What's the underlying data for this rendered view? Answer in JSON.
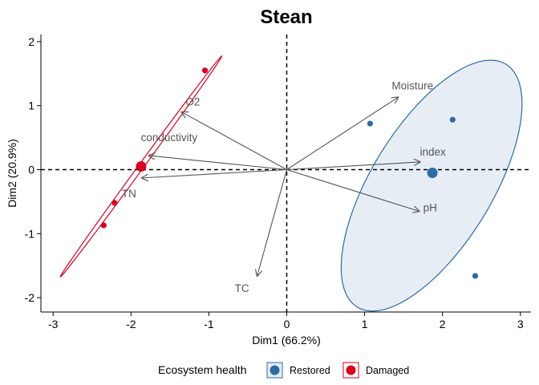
{
  "chart_data": {
    "type": "scatter",
    "title": "Stean",
    "xlabel": "Dim1 (66.2%)",
    "ylabel": "Dim2 (20.9%)",
    "xlim": [
      -3.2,
      3.2
    ],
    "ylim": [
      -2.2,
      2.1
    ],
    "xticks": [
      -3,
      -2,
      -1,
      0,
      1,
      2,
      3
    ],
    "yticks": [
      -2,
      -1,
      0,
      1,
      2
    ],
    "grid": false,
    "reference_lines": {
      "x": 0,
      "y": 0,
      "style": "dashed"
    },
    "legend": {
      "title": "Ecosystem health",
      "position": "bottom",
      "entries": [
        {
          "name": "Restored",
          "color": "#2c6aa8"
        },
        {
          "name": "Damaged",
          "color": "#d7001f"
        }
      ]
    },
    "series": [
      {
        "name": "Restored",
        "color": "#2c6aa8",
        "fill": "#e7edf4",
        "points": [
          {
            "x": 1.07,
            "y": 0.72
          },
          {
            "x": 2.13,
            "y": 0.78
          },
          {
            "x": 2.42,
            "y": -1.66
          }
        ],
        "centroid": {
          "x": 1.87,
          "y": -0.05
        },
        "ellipse": {
          "cx": 1.86,
          "cy": -0.25,
          "rx": 0.81,
          "ry": 2.13,
          "angle_deg": -25
        }
      },
      {
        "name": "Damaged",
        "color": "#d7001f",
        "fill": "none",
        "points": [
          {
            "x": -1.05,
            "y": 1.55
          },
          {
            "x": -2.21,
            "y": -0.52
          },
          {
            "x": -2.35,
            "y": -0.87
          }
        ],
        "centroid": {
          "x": -1.87,
          "y": 0.05
        },
        "ellipse": {
          "cx": -1.87,
          "cy": 0.05,
          "rx": 2.01,
          "ry": 0.035,
          "angle_deg": 59
        }
      }
    ],
    "variables": [
      {
        "name": "Moisture",
        "x": 1.43,
        "y": 1.13
      },
      {
        "name": "O2",
        "x": -1.35,
        "y": 0.9
      },
      {
        "name": "conductivity",
        "x": -1.77,
        "y": 0.22
      },
      {
        "name": "index",
        "x": 1.71,
        "y": 0.12
      },
      {
        "name": "TN",
        "x": -1.86,
        "y": -0.13
      },
      {
        "name": "pH",
        "x": 1.7,
        "y": -0.65
      },
      {
        "name": "TC",
        "x": -0.38,
        "y": -1.66
      }
    ]
  }
}
